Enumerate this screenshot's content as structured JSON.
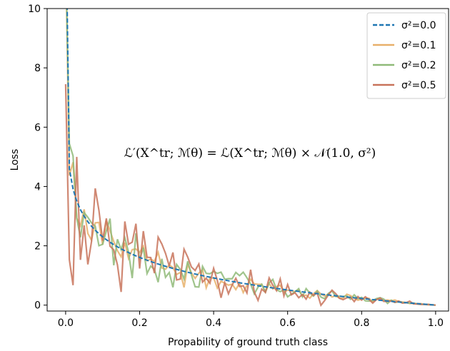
{
  "chart_data": {
    "type": "line",
    "xlabel": "Propability of ground truth class",
    "ylabel": "Loss",
    "xlim": [
      -0.05,
      1.035
    ],
    "ylim": [
      -0.2,
      10
    ],
    "xticks": [
      "0.0",
      "0.2",
      "0.4",
      "0.6",
      "0.8",
      "1.0"
    ],
    "yticks": [
      "0",
      "2",
      "4",
      "6",
      "8",
      "10"
    ],
    "annotation": "ℒ′(X^tr; ℳθ) = ℒ(X^tr; ℳθ) × 𝒩(1.0, σ²)",
    "legend_position": "top-right",
    "grid": false,
    "series": [
      {
        "name": "σ²=0.0",
        "color": "#1f77b4",
        "style": "dashed",
        "noise": 0.0,
        "seed": 1
      },
      {
        "name": "σ²=0.1",
        "color": "#e8b06a",
        "style": "solid",
        "noise": 0.1,
        "seed": 7
      },
      {
        "name": "σ²=0.2",
        "color": "#8fba78",
        "style": "solid",
        "noise": 0.2,
        "seed": 13
      },
      {
        "name": "σ²=0.5",
        "color": "#c8735a",
        "style": "solid",
        "noise": 0.5,
        "seed": 29
      }
    ]
  }
}
